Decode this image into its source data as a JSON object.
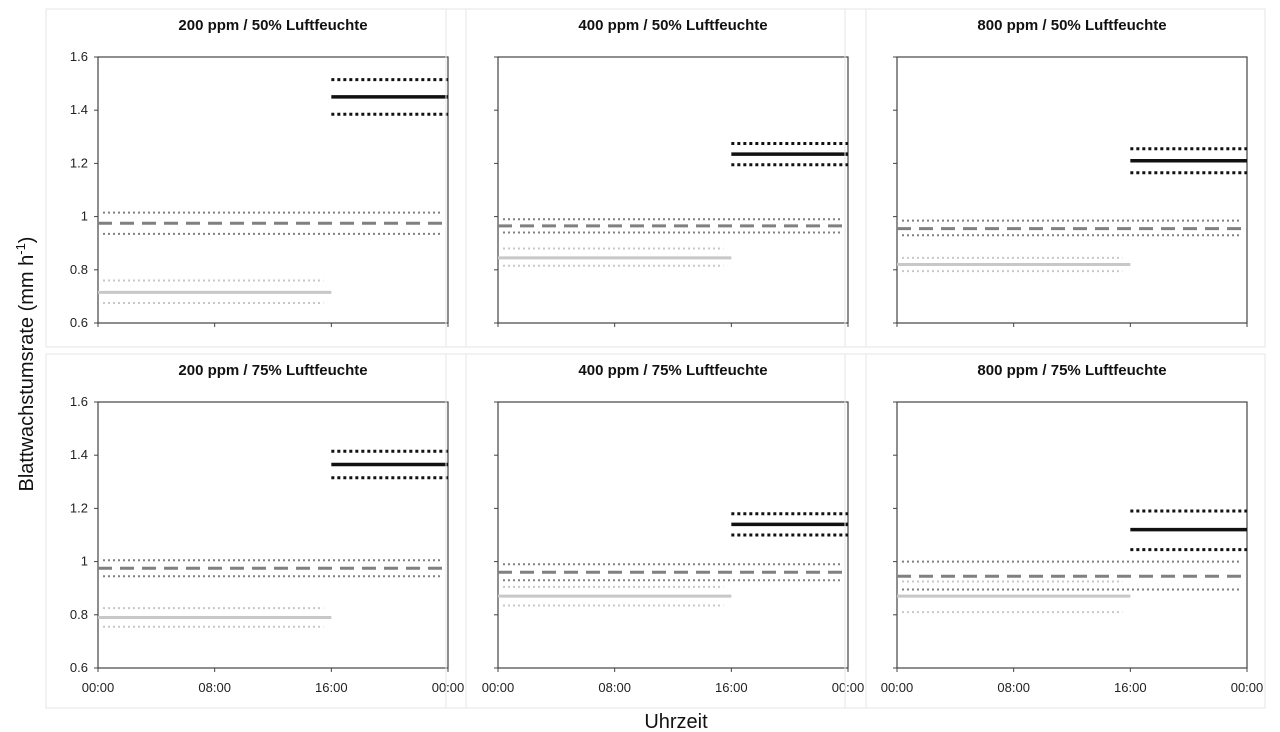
{
  "figure": {
    "ylabel_main": "Blattwachstumsrate (mm h",
    "ylabel_sup": "-1",
    "ylabel_end": ")",
    "xlabel": "Uhrzeit"
  },
  "chart_data": [
    {
      "type": "line",
      "title": "200 ppm / 50%  Luftfeuchte",
      "ylim": [
        0.6,
        1.6
      ],
      "yticks": [
        "0.6",
        "0.8",
        "1",
        "1.2",
        "1.4",
        "1.6"
      ],
      "xticks": [
        "00:00",
        "08:00",
        "16:00",
        "00:00"
      ],
      "series": [
        {
          "role": "daily-mean",
          "style": "dashed",
          "color": "#808080",
          "x": [
            "00:00",
            "00:00"
          ],
          "y": 0.975,
          "ci": [
            0.935,
            1.015
          ]
        },
        {
          "role": "day",
          "style": "solid",
          "color": "#c8c8c8",
          "x": [
            "00:00",
            "16:00"
          ],
          "y": 0.715,
          "ci": [
            0.675,
            0.76
          ]
        },
        {
          "role": "night",
          "style": "solid",
          "color": "#111111",
          "x": [
            "16:00",
            "00:00"
          ],
          "y": 1.45,
          "ci": [
            1.385,
            1.515
          ]
        }
      ]
    },
    {
      "type": "line",
      "title": "400 ppm / 50%  Luftfeuchte",
      "ylim": [
        0.6,
        1.6
      ],
      "yticks": [
        "0.6",
        "0.8",
        "1",
        "1.2",
        "1.4",
        "1.6"
      ],
      "xticks": [
        "00:00",
        "08:00",
        "16:00",
        "00:00"
      ],
      "series": [
        {
          "role": "daily-mean",
          "style": "dashed",
          "color": "#808080",
          "x": [
            "00:00",
            "00:00"
          ],
          "y": 0.965,
          "ci": [
            0.94,
            0.99
          ]
        },
        {
          "role": "day",
          "style": "solid",
          "color": "#c8c8c8",
          "x": [
            "00:00",
            "16:00"
          ],
          "y": 0.845,
          "ci": [
            0.815,
            0.88
          ]
        },
        {
          "role": "night",
          "style": "solid",
          "color": "#111111",
          "x": [
            "16:00",
            "00:00"
          ],
          "y": 1.235,
          "ci": [
            1.195,
            1.275
          ]
        }
      ]
    },
    {
      "type": "line",
      "title": "800 ppm / 50%  Luftfeuchte",
      "ylim": [
        0.6,
        1.6
      ],
      "yticks": [
        "0.6",
        "0.8",
        "1",
        "1.2",
        "1.4",
        "1.6"
      ],
      "xticks": [
        "00:00",
        "08:00",
        "16:00",
        "00:00"
      ],
      "series": [
        {
          "role": "daily-mean",
          "style": "dashed",
          "color": "#808080",
          "x": [
            "00:00",
            "00:00"
          ],
          "y": 0.955,
          "ci": [
            0.93,
            0.985
          ]
        },
        {
          "role": "day",
          "style": "solid",
          "color": "#c8c8c8",
          "x": [
            "00:00",
            "16:00"
          ],
          "y": 0.82,
          "ci": [
            0.795,
            0.845
          ]
        },
        {
          "role": "night",
          "style": "solid",
          "color": "#111111",
          "x": [
            "16:00",
            "00:00"
          ],
          "y": 1.21,
          "ci": [
            1.165,
            1.255
          ]
        }
      ]
    },
    {
      "type": "line",
      "title": "200 ppm / 75%  Luftfeuchte",
      "ylim": [
        0.6,
        1.6
      ],
      "yticks": [
        "0.6",
        "0.8",
        "1",
        "1.2",
        "1.4",
        "1.6"
      ],
      "xticks": [
        "00:00",
        "08:00",
        "16:00",
        "00:00"
      ],
      "series": [
        {
          "role": "daily-mean",
          "style": "dashed",
          "color": "#808080",
          "x": [
            "00:00",
            "00:00"
          ],
          "y": 0.975,
          "ci": [
            0.945,
            1.005
          ]
        },
        {
          "role": "day",
          "style": "solid",
          "color": "#c8c8c8",
          "x": [
            "00:00",
            "16:00"
          ],
          "y": 0.79,
          "ci": [
            0.755,
            0.825
          ]
        },
        {
          "role": "night",
          "style": "solid",
          "color": "#111111",
          "x": [
            "16:00",
            "00:00"
          ],
          "y": 1.365,
          "ci": [
            1.315,
            1.415
          ]
        }
      ]
    },
    {
      "type": "line",
      "title": "400 ppm / 75%  Luftfeuchte",
      "ylim": [
        0.6,
        1.6
      ],
      "yticks": [
        "0.6",
        "0.8",
        "1",
        "1.2",
        "1.4",
        "1.6"
      ],
      "xticks": [
        "00:00",
        "08:00",
        "16:00",
        "00:00"
      ],
      "series": [
        {
          "role": "daily-mean",
          "style": "dashed",
          "color": "#808080",
          "x": [
            "00:00",
            "00:00"
          ],
          "y": 0.96,
          "ci": [
            0.93,
            0.99
          ]
        },
        {
          "role": "day",
          "style": "solid",
          "color": "#c8c8c8",
          "x": [
            "00:00",
            "16:00"
          ],
          "y": 0.87,
          "ci": [
            0.835,
            0.905
          ]
        },
        {
          "role": "night",
          "style": "solid",
          "color": "#111111",
          "x": [
            "16:00",
            "00:00"
          ],
          "y": 1.14,
          "ci": [
            1.1,
            1.18
          ]
        }
      ]
    },
    {
      "type": "line",
      "title": "800 ppm / 75%  Luftfeuchte",
      "ylim": [
        0.6,
        1.6
      ],
      "yticks": [
        "0.6",
        "0.8",
        "1",
        "1.2",
        "1.4",
        "1.6"
      ],
      "xticks": [
        "00:00",
        "08:00",
        "16:00",
        "00:00"
      ],
      "series": [
        {
          "role": "daily-mean",
          "style": "dashed",
          "color": "#808080",
          "x": [
            "00:00",
            "00:00"
          ],
          "y": 0.945,
          "ci": [
            0.895,
            1.0
          ]
        },
        {
          "role": "day",
          "style": "solid",
          "color": "#c8c8c8",
          "x": [
            "00:00",
            "16:00"
          ],
          "y": 0.87,
          "ci": [
            0.81,
            0.925
          ]
        },
        {
          "role": "night",
          "style": "solid",
          "color": "#111111",
          "x": [
            "16:00",
            "00:00"
          ],
          "y": 1.12,
          "ci": [
            1.045,
            1.19
          ]
        }
      ]
    }
  ]
}
